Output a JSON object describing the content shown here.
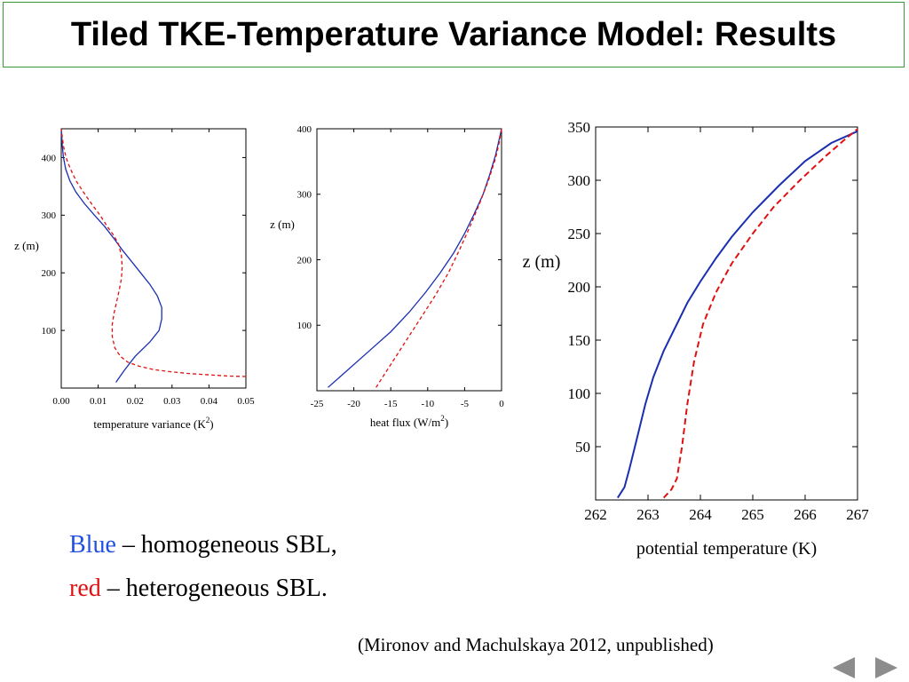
{
  "slide": {
    "title": "Tiled TKE-Temperature Variance Model: Results",
    "legend": {
      "blue_word": "Blue",
      "blue_rest": " – homogeneous SBL,",
      "red_word": "red",
      "red_rest": " – heterogeneous SBL.",
      "blue_color": "#2050e0",
      "red_color": "#e01010"
    },
    "citation": "(Mironov and Machulskaya 2012,  unpublished)",
    "nav": {
      "prev_icon": "triangle-left-icon",
      "next_icon": "triangle-right-icon",
      "color": "#8c8c8c"
    }
  },
  "chart_data": [
    {
      "type": "line",
      "xlabel_main": "temperature variance (K",
      "xlabel_sup": "2",
      "xlabel_end": ")",
      "ylabel": "z (m)",
      "xlim": [
        0,
        0.05
      ],
      "ylim": [
        0,
        450
      ],
      "xticks": [
        {
          "v": 0.0,
          "label": "0.00"
        },
        {
          "v": 0.01,
          "label": "0.01"
        },
        {
          "v": 0.02,
          "label": "0.02"
        },
        {
          "v": 0.03,
          "label": "0.03"
        },
        {
          "v": 0.04,
          "label": "0.04"
        },
        {
          "v": 0.05,
          "label": "0.05"
        }
      ],
      "yticks": [
        {
          "v": 100,
          "label": "100"
        },
        {
          "v": 200,
          "label": "200"
        },
        {
          "v": 300,
          "label": "300"
        },
        {
          "v": 400,
          "label": "400"
        }
      ],
      "series": [
        {
          "color": "#1a2fb0",
          "dashed": false,
          "points": [
            [
              0.0148,
              10
            ],
            [
              0.017,
              30
            ],
            [
              0.02,
              55
            ],
            [
              0.024,
              80
            ],
            [
              0.0265,
              100
            ],
            [
              0.0272,
              120
            ],
            [
              0.0272,
              140
            ],
            [
              0.026,
              160
            ],
            [
              0.024,
              180
            ],
            [
              0.0215,
              200
            ],
            [
              0.019,
              220
            ],
            [
              0.0165,
              240
            ],
            [
              0.0142,
              260
            ],
            [
              0.0118,
              280
            ],
            [
              0.009,
              300
            ],
            [
              0.0063,
              320
            ],
            [
              0.004,
              340
            ],
            [
              0.0023,
              360
            ],
            [
              0.0012,
              380
            ],
            [
              0.0006,
              400
            ],
            [
              0.0003,
              420
            ],
            [
              0.0001,
              440
            ],
            [
              0.0,
              450
            ]
          ]
        },
        {
          "color": "#e01010",
          "dashed": true,
          "points": [
            [
              0.05,
              20
            ],
            [
              0.045,
              21
            ],
            [
              0.04,
              23
            ],
            [
              0.035,
              25
            ],
            [
              0.03,
              28
            ],
            [
              0.025,
              32
            ],
            [
              0.021,
              38
            ],
            [
              0.018,
              45
            ],
            [
              0.016,
              55
            ],
            [
              0.0145,
              70
            ],
            [
              0.0138,
              90
            ],
            [
              0.0138,
              110
            ],
            [
              0.0143,
              130
            ],
            [
              0.015,
              150
            ],
            [
              0.0157,
              170
            ],
            [
              0.0163,
              190
            ],
            [
              0.0165,
              210
            ],
            [
              0.0163,
              230
            ],
            [
              0.0155,
              250
            ],
            [
              0.0142,
              265
            ],
            [
              0.0125,
              280
            ],
            [
              0.0105,
              300
            ],
            [
              0.0082,
              320
            ],
            [
              0.006,
              340
            ],
            [
              0.004,
              360
            ],
            [
              0.0025,
              380
            ],
            [
              0.0013,
              400
            ],
            [
              0.0006,
              420
            ],
            [
              0.0002,
              440
            ],
            [
              0.0,
              450
            ]
          ]
        }
      ]
    },
    {
      "type": "line",
      "xlabel_main": "heat flux (W/m",
      "xlabel_sup": "2",
      "xlabel_end": ")",
      "ylabel": "z (m)",
      "xlim": [
        -25,
        0
      ],
      "ylim": [
        0,
        400
      ],
      "xticks": [
        {
          "v": -25,
          "label": "-25"
        },
        {
          "v": -20,
          "label": "-20"
        },
        {
          "v": -15,
          "label": "-15"
        },
        {
          "v": -10,
          "label": "-10"
        },
        {
          "v": -5,
          "label": "-5"
        },
        {
          "v": 0,
          "label": "0"
        }
      ],
      "yticks": [
        {
          "v": 100,
          "label": "100"
        },
        {
          "v": 200,
          "label": "200"
        },
        {
          "v": 300,
          "label": "300"
        },
        {
          "v": 400,
          "label": "400"
        }
      ],
      "series": [
        {
          "color": "#1a2fb0",
          "dashed": false,
          "points": [
            [
              -23.5,
              5
            ],
            [
              -21,
              30
            ],
            [
              -18,
              60
            ],
            [
              -15,
              90
            ],
            [
              -12.5,
              120
            ],
            [
              -10.3,
              150
            ],
            [
              -8.3,
              180
            ],
            [
              -6.5,
              210
            ],
            [
              -5,
              240
            ],
            [
              -3.7,
              270
            ],
            [
              -2.5,
              300
            ],
            [
              -1.6,
              330
            ],
            [
              -0.8,
              360
            ],
            [
              -0.3,
              385
            ],
            [
              0,
              400
            ]
          ]
        },
        {
          "color": "#e01010",
          "dashed": true,
          "points": [
            [
              -17,
              5
            ],
            [
              -15,
              40
            ],
            [
              -13,
              75
            ],
            [
              -11,
              110
            ],
            [
              -9,
              145
            ],
            [
              -7.2,
              180
            ],
            [
              -5.7,
              215
            ],
            [
              -4.3,
              250
            ],
            [
              -3,
              285
            ],
            [
              -1.8,
              320
            ],
            [
              -0.8,
              355
            ],
            [
              -0.3,
              380
            ],
            [
              0,
              400
            ]
          ]
        }
      ]
    },
    {
      "type": "line",
      "xlabel_main": "potential temperature (K)",
      "xlabel_sup": "",
      "xlabel_end": "",
      "ylabel": "z (m)",
      "xlim": [
        262,
        267
      ],
      "ylim": [
        0,
        350
      ],
      "xticks": [
        {
          "v": 262,
          "label": "262"
        },
        {
          "v": 263,
          "label": "263"
        },
        {
          "v": 264,
          "label": "264"
        },
        {
          "v": 265,
          "label": "265"
        },
        {
          "v": 266,
          "label": "266"
        },
        {
          "v": 267,
          "label": "267"
        }
      ],
      "yticks": [
        {
          "v": 50,
          "label": "50"
        },
        {
          "v": 100,
          "label": "100"
        },
        {
          "v": 150,
          "label": "150"
        },
        {
          "v": 200,
          "label": "200"
        },
        {
          "v": 250,
          "label": "250"
        },
        {
          "v": 300,
          "label": "300"
        },
        {
          "v": 350,
          "label": "350"
        }
      ],
      "series": [
        {
          "color": "#1a2fb0",
          "dashed": false,
          "points": [
            [
              262.42,
              2
            ],
            [
              262.55,
              12
            ],
            [
              262.65,
              30
            ],
            [
              262.8,
              60
            ],
            [
              262.95,
              90
            ],
            [
              263.1,
              115
            ],
            [
              263.3,
              140
            ],
            [
              263.55,
              165
            ],
            [
              263.75,
              185
            ],
            [
              264.0,
              205
            ],
            [
              264.3,
              227
            ],
            [
              264.6,
              247
            ],
            [
              265.0,
              270
            ],
            [
              265.5,
              295
            ],
            [
              266.0,
              318
            ],
            [
              266.5,
              335
            ],
            [
              267.0,
              346
            ]
          ]
        },
        {
          "color": "#e01010",
          "dashed": true,
          "points": [
            [
              263.3,
              2
            ],
            [
              263.45,
              10
            ],
            [
              263.55,
              20
            ],
            [
              263.65,
              50
            ],
            [
              263.75,
              90
            ],
            [
              263.88,
              130
            ],
            [
              264.05,
              165
            ],
            [
              264.3,
              195
            ],
            [
              264.6,
              222
            ],
            [
              265.0,
              250
            ],
            [
              265.4,
              275
            ],
            [
              265.9,
              300
            ],
            [
              266.4,
              323
            ],
            [
              266.75,
              338
            ],
            [
              267.0,
              348
            ]
          ]
        }
      ]
    }
  ]
}
